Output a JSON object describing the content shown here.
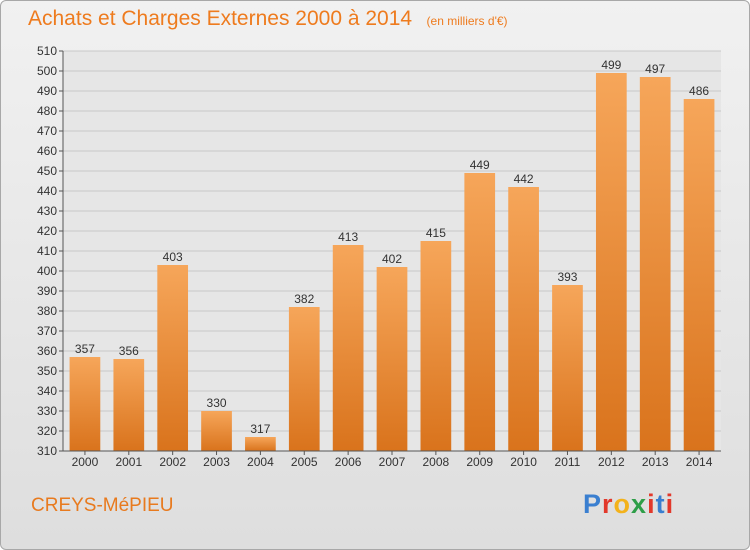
{
  "header": {
    "title": "Achats et Charges Externes 2000 à 2014",
    "subtitle": "(en milliers d'€)"
  },
  "footer": {
    "place": "CREYS-MéPIEU",
    "logo_text": "Proxiti",
    "logo_colors": [
      "#3a7fd0",
      "#e2382b",
      "#f3b21b",
      "#2e9e48",
      "#e2382b",
      "#3a7fd0",
      "#e2382b"
    ]
  },
  "colors": {
    "bar_light": "#f6a65a",
    "bar_dark": "#d9731c",
    "grid": "#c8c8c8",
    "axis": "#555555"
  },
  "chart_data": {
    "type": "bar",
    "categories": [
      "2000",
      "2001",
      "2002",
      "2003",
      "2004",
      "2005",
      "2006",
      "2007",
      "2008",
      "2009",
      "2010",
      "2011",
      "2012",
      "2013",
      "2014"
    ],
    "values": [
      357,
      356,
      403,
      330,
      317,
      382,
      413,
      402,
      415,
      449,
      442,
      393,
      499,
      497,
      486
    ],
    "title": "Achats et Charges Externes 2000 à 2014",
    "subtitle": "(en milliers d'€)",
    "xlabel": "",
    "ylabel": "",
    "ylim": [
      310,
      510
    ],
    "ytick_step": 10,
    "grid": true,
    "legend": "none"
  }
}
